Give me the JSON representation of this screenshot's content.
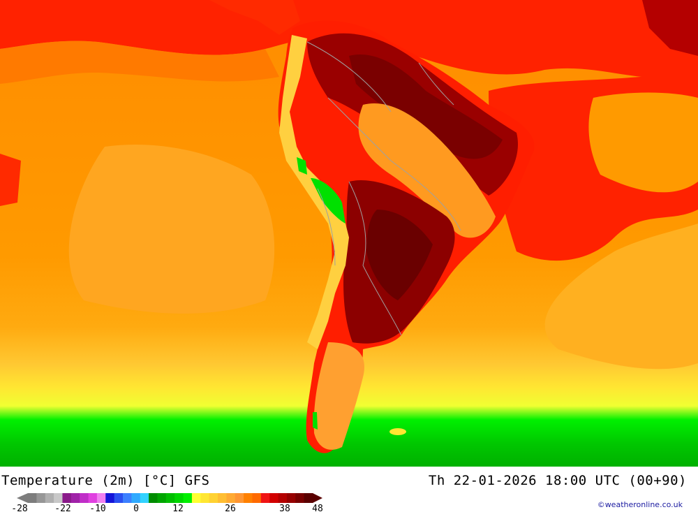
{
  "title": "Temperature (2m) [°C] GFS",
  "valid_time": "Th 22-01-2026 18:00 UTC (00+90)",
  "credit": "©weatheronline.co.uk",
  "legend": {
    "tick_labels": [
      "-28",
      "-22",
      "-10",
      "0",
      "12",
      "26",
      "38",
      "48"
    ],
    "colors": [
      "#7d7d7d",
      "#969696",
      "#afafaf",
      "#c8c8c8",
      "#8a1a8a",
      "#a022a8",
      "#c02ec8",
      "#e040e0",
      "#f080f0",
      "#1414d8",
      "#2a50f0",
      "#3c80ff",
      "#30aaff",
      "#32d2ff",
      "#008c00",
      "#00a500",
      "#00be00",
      "#00d700",
      "#00f000",
      "#ffff32",
      "#ffe632",
      "#ffd232",
      "#ffbe32",
      "#ffaa32",
      "#ff9632",
      "#ff8000",
      "#ff6a00",
      "#f01414",
      "#d20000",
      "#b40000",
      "#960000",
      "#780000",
      "#5a0000"
    ]
  },
  "map": {
    "region": "South America",
    "colors": {
      "ocean_cool": "#ff9a00",
      "ocean_mild": "#ffb432",
      "ocean_warm": "#ff6a00",
      "hot": "#ff1e00",
      "very_hot": "#c80000",
      "extreme": "#8c0000",
      "yellow_band": "#fff032",
      "green_band": "#00dc00",
      "green_dark": "#00b400",
      "borders": "#a0a0a0"
    }
  }
}
